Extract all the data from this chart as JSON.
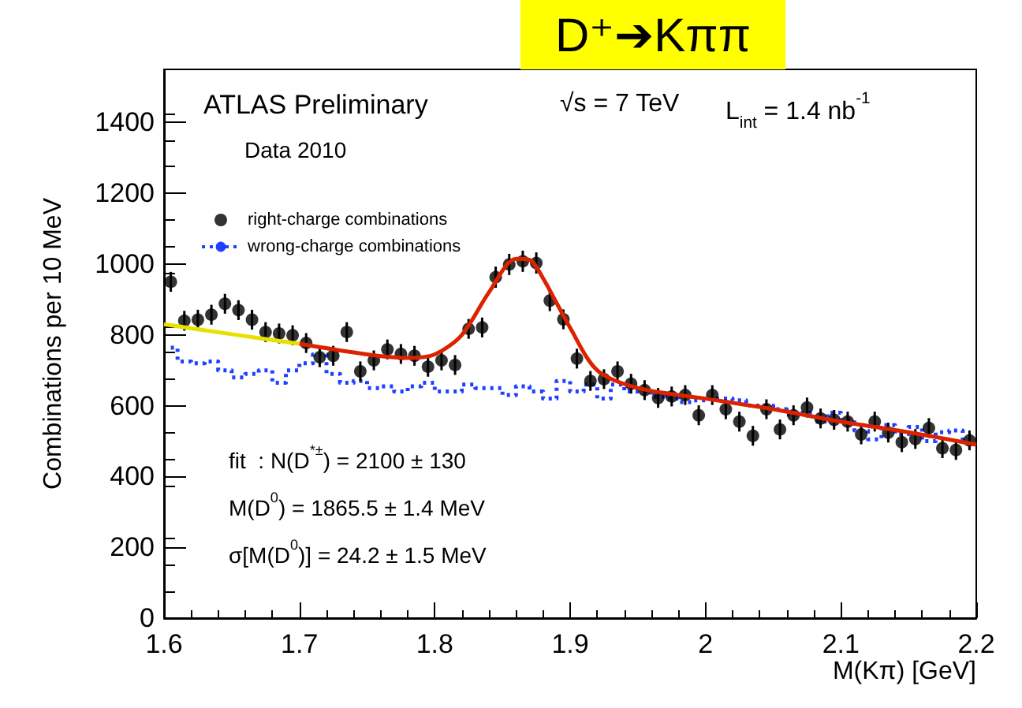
{
  "chart_data": {
    "type": "scatter",
    "title": "D⁺➔Kππ",
    "xlabel": "M(Kπ) [GeV]",
    "ylabel": "Combinations per 10 MeV",
    "x": [
      1.605,
      1.615,
      1.625,
      1.635,
      1.645,
      1.655,
      1.665,
      1.675,
      1.685,
      1.695,
      1.705,
      1.715,
      1.725,
      1.735,
      1.745,
      1.755,
      1.765,
      1.775,
      1.785,
      1.795,
      1.805,
      1.815,
      1.825,
      1.835,
      1.845,
      1.855,
      1.865,
      1.875,
      1.885,
      1.895,
      1.905,
      1.915,
      1.925,
      1.935,
      1.945,
      1.955,
      1.965,
      1.975,
      1.985,
      1.995,
      2.005,
      2.015,
      2.025,
      2.035,
      2.045,
      2.055,
      2.065,
      2.075,
      2.085,
      2.095,
      2.105,
      2.115,
      2.125,
      2.135,
      2.145,
      2.155,
      2.165,
      2.175,
      2.185,
      2.195
    ],
    "series": [
      {
        "name": "right-charge combinations",
        "color": "#000000",
        "marker": "circle",
        "values": [
          950,
          840,
          843,
          857,
          888,
          870,
          843,
          808,
          804,
          799,
          777,
          737,
          741,
          808,
          697,
          728,
          759,
          746,
          741,
          710,
          728,
          715,
          817,
          821,
          963,
          999,
          1008,
          1003,
          897,
          844,
          733,
          670,
          675,
          697,
          662,
          644,
          622,
          626,
          630,
          573,
          630,
          590,
          555,
          515,
          590,
          533,
          573,
          595,
          564,
          560,
          555,
          519,
          555,
          524,
          497,
          506,
          537,
          480,
          475,
          502
        ],
        "errors": [
          28,
          28,
          28,
          28,
          28,
          28,
          28,
          28,
          28,
          28,
          28,
          28,
          28,
          28,
          28,
          28,
          28,
          28,
          28,
          28,
          28,
          28,
          28,
          28,
          30,
          30,
          30,
          30,
          30,
          28,
          28,
          28,
          28,
          28,
          28,
          28,
          28,
          28,
          28,
          28,
          28,
          28,
          28,
          28,
          28,
          28,
          28,
          28,
          28,
          28,
          28,
          28,
          28,
          28,
          28,
          28,
          28,
          28,
          28,
          28
        ]
      },
      {
        "name": "wrong-charge combinations",
        "type": "step",
        "color": "#2040ff",
        "line_style": "dotted",
        "values": [
          764,
          725,
          720,
          725,
          700,
          680,
          690,
          700,
          665,
          700,
          720,
          745,
          690,
          665,
          670,
          650,
          655,
          640,
          655,
          665,
          640,
          640,
          660,
          650,
          650,
          630,
          655,
          640,
          620,
          670,
          640,
          660,
          620,
          660,
          640,
          640,
          625,
          620,
          610,
          615,
          620,
          620,
          615,
          600,
          600,
          590,
          575,
          580,
          555,
          580,
          560,
          530,
          505,
          545,
          520,
          540,
          500,
          525,
          530,
          495
        ]
      },
      {
        "type": "line",
        "color": "#e8e000",
        "line_style": "solid",
        "x": [
          1.6,
          1.65,
          1.7
        ],
        "values": [
          830,
          802,
          775
        ]
      },
      {
        "type": "line",
        "color": "#dd2200",
        "line_style": "solid",
        "x": [
          1.7,
          1.75,
          1.78,
          1.8,
          1.82,
          1.84,
          1.86,
          1.87,
          1.88,
          1.9,
          1.92,
          1.95,
          2.0,
          2.05,
          2.1,
          2.15,
          2.2
        ],
        "values": [
          775,
          745,
          735,
          745,
          800,
          920,
          1015,
          1012,
          960,
          820,
          700,
          650,
          620,
          590,
          555,
          525,
          490
        ]
      }
    ],
    "xlim": [
      1.6,
      2.2
    ],
    "xticks": [
      1.6,
      1.7,
      1.8,
      1.9,
      2,
      2.1,
      2.2
    ],
    "ylim": [
      0,
      1550
    ],
    "yticks": [
      0,
      200,
      400,
      600,
      800,
      1000,
      1200,
      1400
    ],
    "grid": false,
    "legend": "top left",
    "annotations": [
      "ATLAS Preliminary",
      "√s = 7 TeV",
      "L$_{int}$ = 1.4 nb$^{-1}$",
      "Data 2010",
      "fit  : N(D$^{*±}$) = 2100 ± 130",
      "M(D$^{0}$) = 1865.5 ± 1.4 MeV",
      "σ[M(D$^{0}$)] = 24.2 ± 1.5 MeV"
    ]
  }
}
